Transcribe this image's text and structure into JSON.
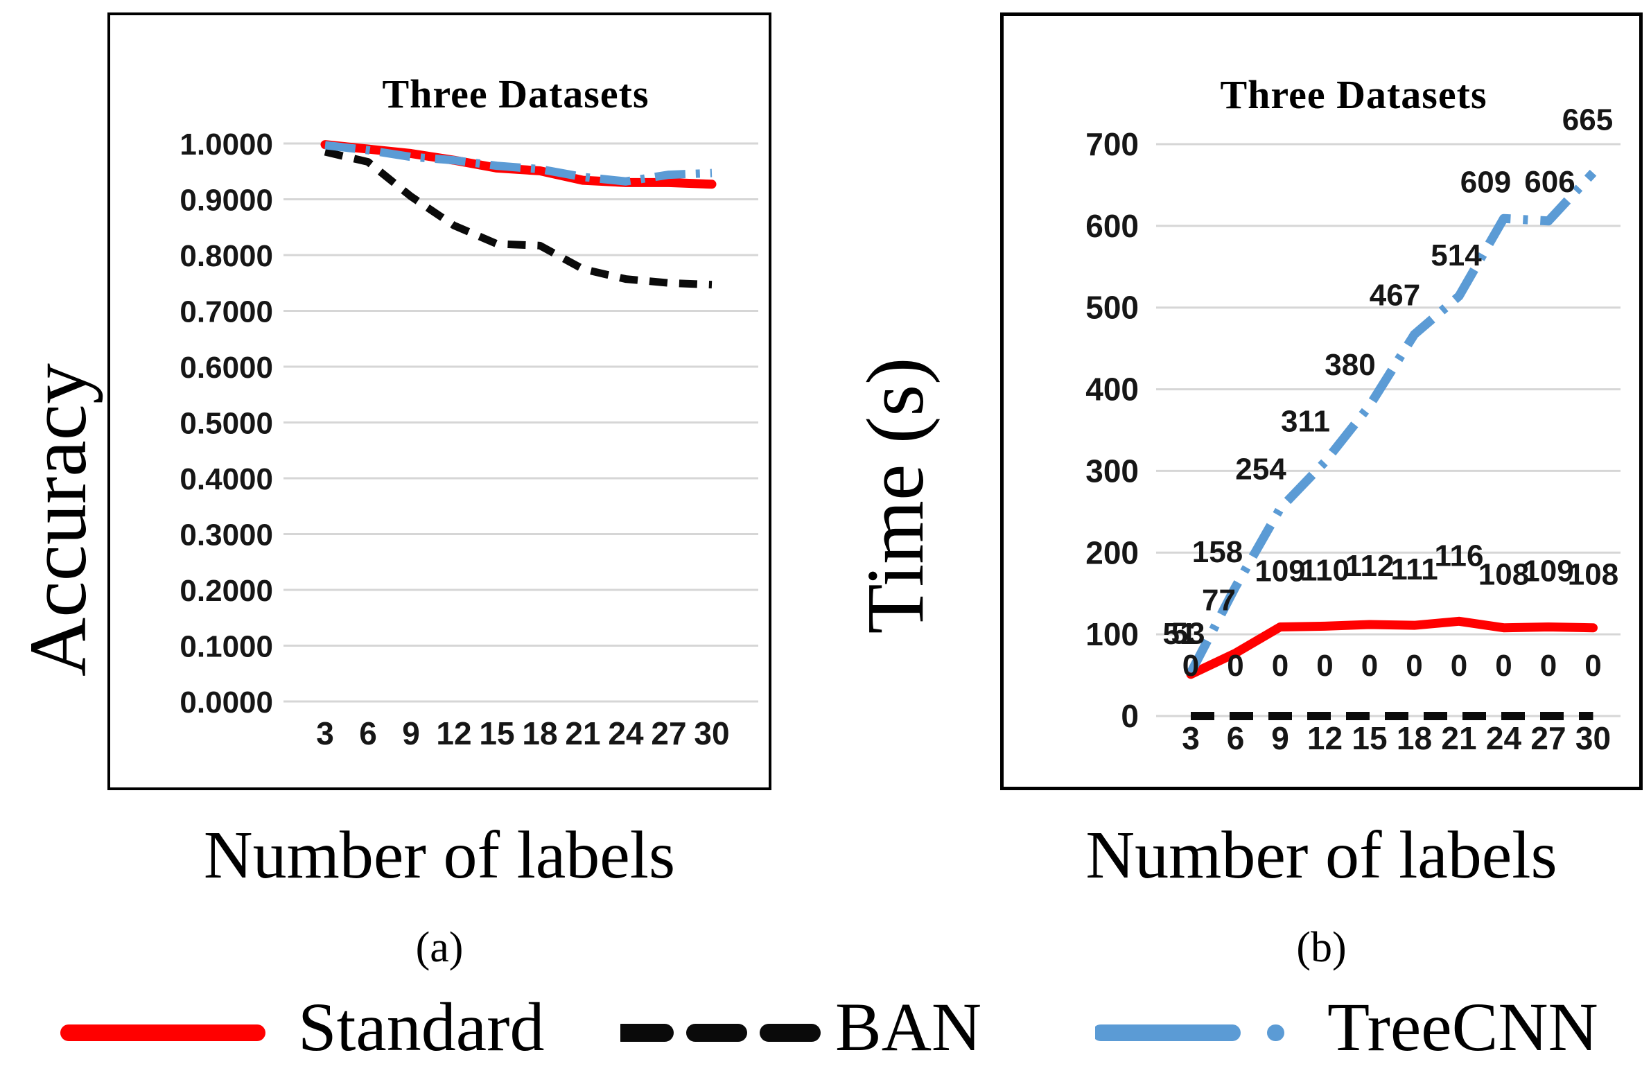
{
  "figure": {
    "panels": [
      {
        "title": "Three Datasets",
        "y_axis_title": "Accuracy",
        "x_axis_title": "Number of labels",
        "caption": "(a)"
      },
      {
        "title": "Three Datasets",
        "y_axis_title": "Time (s)",
        "x_axis_title": "Number of labels",
        "caption": "(b)"
      }
    ],
    "legend": [
      {
        "label": "Standard",
        "color": "#ff0000",
        "style": "solid"
      },
      {
        "label": "BAN",
        "color": "#0a0a0a",
        "style": "dashed"
      },
      {
        "label": "TreeCNN",
        "color": "#5b9bd5",
        "style": "dash-dot"
      }
    ],
    "colors": {
      "accent_red": "#ff0000",
      "accent_blue": "#5b9bd5",
      "line_black": "#0a0a0a",
      "gridline": "#d6d6d6"
    }
  },
  "chart_data": [
    {
      "type": "line",
      "panel": "a",
      "title": "Three Datasets",
      "xlabel": "Number of labels",
      "ylabel": "Accuracy",
      "categories": [
        "3",
        "6",
        "9",
        "12",
        "15",
        "18",
        "21",
        "24",
        "27",
        "30"
      ],
      "ylim": [
        0,
        1
      ],
      "y_ticks": [
        "1.0000",
        "0.9000",
        "0.8000",
        "0.7000",
        "0.6000",
        "0.5000",
        "0.4000",
        "0.3000",
        "0.2000",
        "0.1000",
        "0.0000"
      ],
      "grid": true,
      "legend_position": "bottom-shared",
      "series": [
        {
          "name": "Standard",
          "color": "#ff0000",
          "line_style": "solid",
          "data_labels": false,
          "values": [
            0.998,
            0.99,
            0.982,
            0.97,
            0.956,
            0.951,
            0.934,
            0.93,
            0.93,
            0.927
          ]
        },
        {
          "name": "BAN",
          "color": "#0a0a0a",
          "line_style": "dashed",
          "data_labels": false,
          "values": [
            0.985,
            0.967,
            0.905,
            0.853,
            0.82,
            0.817,
            0.775,
            0.757,
            0.75,
            0.747
          ]
        },
        {
          "name": "TreeCNN",
          "color": "#5b9bd5",
          "line_style": "dash-dot",
          "data_labels": false,
          "values": [
            0.997,
            0.988,
            0.976,
            0.97,
            0.96,
            0.954,
            0.94,
            0.932,
            0.944,
            0.947
          ]
        }
      ]
    },
    {
      "type": "line",
      "panel": "b",
      "title": "Three Datasets",
      "xlabel": "Number of labels",
      "ylabel": "Time (s)",
      "categories": [
        "3",
        "6",
        "9",
        "12",
        "15",
        "18",
        "21",
        "24",
        "27",
        "30"
      ],
      "ylim": [
        0,
        700
      ],
      "y_ticks": [
        "700",
        "600",
        "500",
        "400",
        "300",
        "200",
        "100",
        "0"
      ],
      "grid": true,
      "legend_position": "bottom-shared",
      "series": [
        {
          "name": "Standard",
          "color": "#ff0000",
          "line_style": "solid",
          "data_labels": true,
          "values": [
            51,
            77,
            109,
            110,
            112,
            111,
            116,
            108,
            109,
            108
          ]
        },
        {
          "name": "BAN",
          "color": "#0a0a0a",
          "line_style": "dashed",
          "data_labels": true,
          "values": [
            0,
            0,
            0,
            0,
            0,
            0,
            0,
            0,
            0,
            0
          ]
        },
        {
          "name": "TreeCNN",
          "color": "#5b9bd5",
          "line_style": "dash-dot",
          "data_labels": true,
          "values": [
            53,
            158,
            254,
            311,
            380,
            467,
            514,
            609,
            606,
            665
          ]
        }
      ]
    }
  ]
}
